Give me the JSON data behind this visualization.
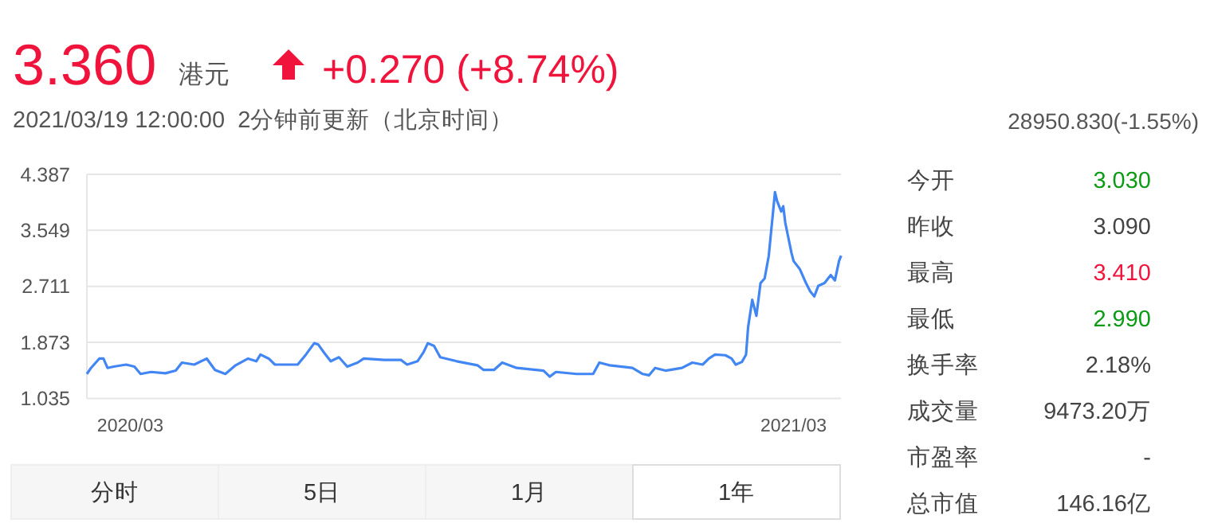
{
  "chart_data": [
    {
      "type": "line",
      "xlim": [
        "2020-03-19",
        "2021-03-19"
      ],
      "ylim": [
        1.035,
        4.387
      ],
      "yticks": [
        1.035,
        1.873,
        2.711,
        3.549,
        4.387
      ],
      "xticks": [
        {
          "value": "2020-04-09",
          "label": "2020/03"
        },
        {
          "value": "2021-02-24",
          "label": "2021/03"
        }
      ],
      "grid": "y",
      "x": [
        "2020-03-19",
        "2020-03-21",
        "2020-03-25",
        "2020-03-27",
        "2020-03-29",
        "2020-04-01",
        "2020-04-07",
        "2020-04-11",
        "2020-04-14",
        "2020-04-19",
        "2020-04-26",
        "2020-05-01",
        "2020-05-04",
        "2020-05-10",
        "2020-05-16",
        "2020-05-20",
        "2020-05-25",
        "2020-05-30",
        "2020-06-05",
        "2020-06-09",
        "2020-06-11",
        "2020-06-15",
        "2020-06-18",
        "2020-06-29",
        "2020-07-03",
        "2020-07-07",
        "2020-07-09",
        "2020-07-12",
        "2020-07-15",
        "2020-07-19",
        "2020-07-23",
        "2020-07-28",
        "2020-07-31",
        "2020-08-10",
        "2020-08-18",
        "2020-08-21",
        "2020-08-26",
        "2020-08-29",
        "2020-08-31",
        "2020-09-03",
        "2020-09-06",
        "2020-09-14",
        "2020-09-24",
        "2020-09-27",
        "2020-10-02",
        "2020-10-06",
        "2020-10-13",
        "2020-10-26",
        "2020-10-29",
        "2020-11-01",
        "2020-11-11",
        "2020-11-19",
        "2020-11-22",
        "2020-11-27",
        "2020-12-08",
        "2020-12-13",
        "2020-12-16",
        "2020-12-19",
        "2020-12-24",
        "2021-01-01",
        "2021-01-06",
        "2021-01-11",
        "2021-01-14",
        "2021-01-17",
        "2021-01-22",
        "2021-01-25",
        "2021-01-27",
        "2021-01-30",
        "2021-02-01",
        "2021-02-02",
        "2021-02-04",
        "2021-02-06",
        "2021-02-08",
        "2021-02-10",
        "2021-02-12",
        "2021-02-15",
        "2021-02-16",
        "2021-02-18",
        "2021-02-19",
        "2021-02-20",
        "2021-02-23",
        "2021-02-24",
        "2021-02-27",
        "2021-03-02",
        "2021-03-04",
        "2021-03-06",
        "2021-03-08",
        "2021-03-11",
        "2021-03-14",
        "2021-03-16",
        "2021-03-18",
        "2021-03-19"
      ],
      "series": [
        {
          "color": "#4286f4",
          "values": [
            1.4,
            1.49,
            1.63,
            1.63,
            1.49,
            1.51,
            1.54,
            1.51,
            1.4,
            1.43,
            1.41,
            1.45,
            1.57,
            1.54,
            1.63,
            1.46,
            1.4,
            1.53,
            1.63,
            1.59,
            1.69,
            1.63,
            1.54,
            1.54,
            1.69,
            1.86,
            1.84,
            1.71,
            1.59,
            1.65,
            1.51,
            1.57,
            1.63,
            1.61,
            1.61,
            1.54,
            1.59,
            1.73,
            1.86,
            1.82,
            1.65,
            1.59,
            1.53,
            1.46,
            1.46,
            1.57,
            1.49,
            1.45,
            1.36,
            1.43,
            1.4,
            1.4,
            1.57,
            1.53,
            1.49,
            1.4,
            1.38,
            1.49,
            1.45,
            1.49,
            1.57,
            1.54,
            1.63,
            1.69,
            1.68,
            1.63,
            1.54,
            1.58,
            1.69,
            2.1,
            2.51,
            2.27,
            2.76,
            2.83,
            3.17,
            4.12,
            3.99,
            3.83,
            3.91,
            3.66,
            3.21,
            3.09,
            2.97,
            2.76,
            2.64,
            2.56,
            2.72,
            2.76,
            2.88,
            2.8,
            3.09,
            3.17
          ]
        }
      ]
    },
    {
      "type": "other",
      "title": "3.360",
      "subtitle": "2021/03/19 12:00:00  2分钟前更新（北京时间）",
      "annotations": [
        "港元",
        "+0.270 (+8.74%)",
        "28950.830(-1.55%)",
        "今开",
        "3.030",
        "昨收",
        "3.090",
        "最高",
        "3.410",
        "最低",
        "2.990",
        "换手率",
        "2.18%",
        "成交量",
        "9473.20万",
        "市盈率",
        "-",
        "总市值",
        "146.16亿",
        "分时",
        "5日",
        "1月",
        "1年"
      ]
    }
  ]
}
